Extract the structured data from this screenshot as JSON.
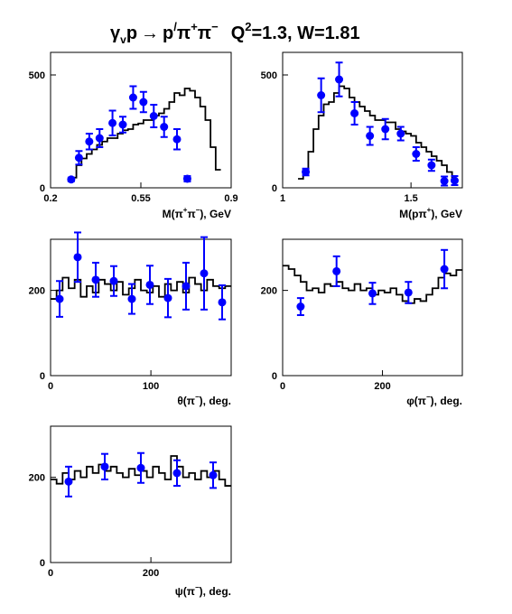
{
  "title": {
    "lhs_gamma": "γ",
    "lhs_gamma_sub": "v",
    "lhs_p": "p",
    "arrow": "→",
    "rhs_p": "p",
    "rhs_prime": "/",
    "rhs_pi1": "π",
    "rhs_pi1_sup": "+",
    "rhs_pi2": "π",
    "rhs_pi2_sup": "−",
    "q": "Q",
    "q_sup": "2",
    "kinematics": "=1.3, W=1.81"
  },
  "colors": {
    "data_points": "#0000ff",
    "model_histogram": "#000000",
    "axes": "#000000"
  },
  "chart_data": [
    {
      "type": "scatter",
      "xlabel": "M(π⁺π⁻), GeV",
      "xlabel_parts": [
        "M(π",
        "+",
        "π",
        "−",
        "), GeV"
      ],
      "xlim": [
        0.2,
        0.9
      ],
      "ylim": [
        0,
        600
      ],
      "x_ticks": [
        0.2,
        0.55,
        0.9
      ],
      "x_tick_labels": [
        "0.2",
        "0.55",
        "0.9"
      ],
      "y_ticks": [
        0,
        500
      ],
      "y_tick_labels": [
        "0",
        "500"
      ],
      "points": {
        "x": [
          0.28,
          0.31,
          0.35,
          0.39,
          0.44,
          0.48,
          0.52,
          0.56,
          0.6,
          0.64,
          0.69,
          0.73
        ],
        "y": [
          37,
          133,
          205,
          220,
          287,
          280,
          400,
          380,
          318,
          270,
          215,
          40
        ],
        "err": [
          8,
          30,
          35,
          40,
          55,
          35,
          50,
          45,
          50,
          45,
          45,
          12
        ]
      },
      "model": {
        "edges": [
          0.28,
          0.3,
          0.32,
          0.34,
          0.36,
          0.38,
          0.4,
          0.42,
          0.44,
          0.46,
          0.48,
          0.5,
          0.52,
          0.54,
          0.56,
          0.58,
          0.6,
          0.62,
          0.64,
          0.66,
          0.68,
          0.7,
          0.72,
          0.74,
          0.76,
          0.78,
          0.8,
          0.82,
          0.84,
          0.86
        ],
        "values": [
          45,
          100,
          130,
          150,
          170,
          190,
          205,
          220,
          220,
          240,
          255,
          260,
          280,
          285,
          300,
          300,
          320,
          330,
          350,
          380,
          420,
          410,
          440,
          430,
          400,
          360,
          300,
          180,
          80
        ]
      }
    },
    {
      "type": "scatter",
      "xlabel": "M(pπ⁺), GeV",
      "xlabel_parts": [
        "M(pπ",
        "+",
        "), GeV"
      ],
      "xlim": [
        1.0,
        1.7
      ],
      "ylim": [
        0,
        600
      ],
      "x_ticks": [
        1.0,
        1.5
      ],
      "x_tick_labels": [
        "1",
        "1.5"
      ],
      "y_ticks": [
        0,
        500
      ],
      "y_tick_labels": [
        "0",
        "500"
      ],
      "points": {
        "x": [
          1.09,
          1.15,
          1.22,
          1.28,
          1.34,
          1.4,
          1.46,
          1.52,
          1.58,
          1.63,
          1.67
        ],
        "y": [
          70,
          410,
          480,
          330,
          230,
          260,
          240,
          150,
          100,
          30,
          32
        ],
        "err": [
          15,
          75,
          75,
          50,
          40,
          45,
          30,
          30,
          25,
          20,
          20
        ]
      },
      "model": {
        "edges": [
          1.06,
          1.08,
          1.1,
          1.12,
          1.14,
          1.16,
          1.18,
          1.2,
          1.22,
          1.24,
          1.26,
          1.28,
          1.3,
          1.32,
          1.34,
          1.36,
          1.38,
          1.4,
          1.42,
          1.44,
          1.46,
          1.48,
          1.5,
          1.52,
          1.54,
          1.56,
          1.58,
          1.6,
          1.62,
          1.64,
          1.66,
          1.68
        ],
        "values": [
          40,
          80,
          160,
          260,
          320,
          370,
          380,
          420,
          450,
          440,
          400,
          380,
          360,
          340,
          320,
          300,
          300,
          290,
          290,
          260,
          250,
          240,
          230,
          200,
          180,
          160,
          140,
          120,
          100,
          70,
          40
        ]
      }
    },
    {
      "type": "scatter",
      "xlabel": "θ(π⁻), deg.",
      "xlabel_parts": [
        "θ(π",
        "−",
        "), deg."
      ],
      "xlim": [
        0,
        180
      ],
      "ylim": [
        0,
        320
      ],
      "x_ticks": [
        0,
        100
      ],
      "x_tick_labels": [
        "0",
        "100"
      ],
      "y_ticks": [
        0,
        200
      ],
      "y_tick_labels": [
        "0",
        "200"
      ],
      "points": {
        "x": [
          9,
          27,
          45,
          63,
          81,
          99,
          117,
          135,
          153,
          171
        ],
        "y": [
          180,
          278,
          225,
          222,
          180,
          213,
          182,
          210,
          240,
          172
        ],
        "err": [
          42,
          58,
          40,
          35,
          35,
          45,
          45,
          55,
          85,
          40
        ]
      },
      "model": {
        "edges": [
          0,
          6,
          12,
          18,
          24,
          30,
          36,
          42,
          48,
          54,
          60,
          66,
          72,
          78,
          84,
          90,
          96,
          102,
          108,
          114,
          120,
          126,
          132,
          138,
          144,
          150,
          156,
          162,
          168,
          174,
          180
        ],
        "values": [
          180,
          200,
          230,
          205,
          225,
          185,
          210,
          195,
          225,
          215,
          200,
          220,
          190,
          205,
          225,
          200,
          195,
          210,
          185,
          215,
          200,
          220,
          195,
          230,
          215,
          200,
          225,
          210,
          205,
          210
        ]
      }
    },
    {
      "type": "scatter",
      "xlabel": "φ(π⁻), deg.",
      "xlabel_parts": [
        "φ(π",
        "−",
        "), deg."
      ],
      "xlim": [
        0,
        360
      ],
      "ylim": [
        0,
        320
      ],
      "x_ticks": [
        0,
        200
      ],
      "x_tick_labels": [
        "0",
        "200"
      ],
      "y_ticks": [
        0,
        200
      ],
      "y_tick_labels": [
        "0",
        "200"
      ],
      "points": {
        "x": [
          36,
          108,
          180,
          252,
          324
        ],
        "y": [
          162,
          245,
          193,
          195,
          250
        ],
        "err": [
          20,
          35,
          25,
          25,
          45
        ]
      },
      "model": {
        "edges": [
          0,
          12,
          24,
          36,
          48,
          60,
          72,
          84,
          96,
          108,
          120,
          132,
          144,
          156,
          168,
          180,
          192,
          204,
          216,
          228,
          240,
          252,
          264,
          276,
          288,
          300,
          312,
          324,
          336,
          348,
          360
        ],
        "values": [
          258,
          250,
          235,
          220,
          200,
          205,
          195,
          215,
          210,
          220,
          205,
          200,
          215,
          200,
          205,
          190,
          200,
          195,
          205,
          190,
          175,
          170,
          180,
          175,
          190,
          205,
          230,
          240,
          235,
          248
        ]
      }
    },
    {
      "type": "scatter",
      "xlabel": "ψ(π⁻), deg.",
      "xlabel_parts": [
        "ψ(π",
        "−",
        "), deg."
      ],
      "xlim": [
        0,
        360
      ],
      "ylim": [
        0,
        320
      ],
      "x_ticks": [
        0,
        200
      ],
      "x_tick_labels": [
        "0",
        "200"
      ],
      "y_ticks": [
        0,
        200
      ],
      "y_tick_labels": [
        "0",
        "200"
      ],
      "points": {
        "x": [
          36,
          108,
          180,
          252,
          324
        ],
        "y": [
          190,
          225,
          222,
          210,
          205
        ],
        "err": [
          35,
          30,
          35,
          30,
          30
        ]
      },
      "model": {
        "edges": [
          0,
          12,
          24,
          36,
          48,
          60,
          72,
          84,
          96,
          108,
          120,
          132,
          144,
          156,
          168,
          180,
          192,
          204,
          216,
          228,
          240,
          252,
          264,
          276,
          288,
          300,
          312,
          324,
          336,
          348,
          360
        ],
        "values": [
          195,
          185,
          210,
          195,
          215,
          200,
          225,
          210,
          230,
          215,
          225,
          210,
          200,
          220,
          205,
          215,
          200,
          225,
          210,
          195,
          250,
          225,
          200,
          210,
          195,
          215,
          200,
          215,
          195,
          180
        ]
      }
    }
  ]
}
